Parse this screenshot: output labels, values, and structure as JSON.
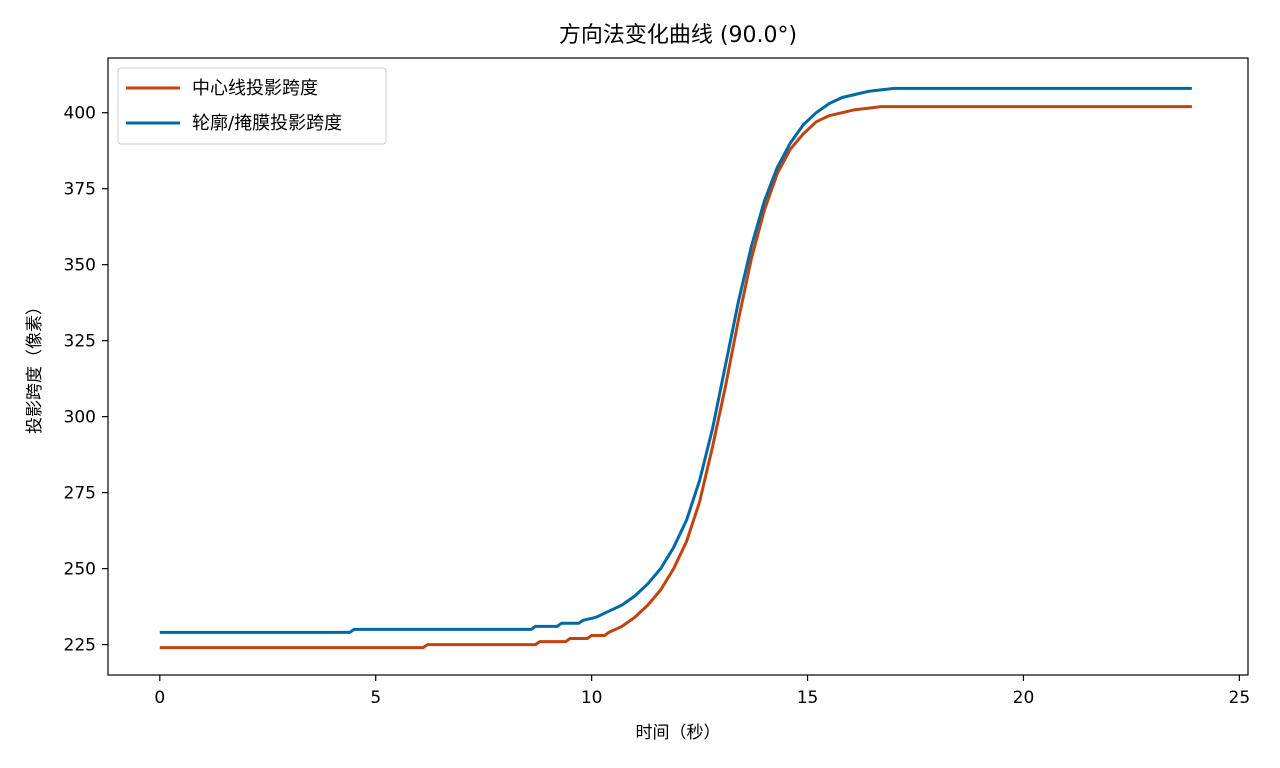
{
  "chart_data": {
    "type": "line",
    "title": "方向法变化曲线 (90.0°)",
    "xlabel": "时间（秒）",
    "ylabel": "投影跨度（像素）",
    "xlim": [
      -1.2,
      25.2
    ],
    "ylim": [
      215,
      418
    ],
    "xticks": [
      0,
      5,
      10,
      15,
      20,
      25
    ],
    "yticks": [
      225,
      250,
      275,
      300,
      325,
      350,
      375,
      400
    ],
    "grid": false,
    "legend_position": "top-left",
    "series": [
      {
        "name": "中心线投影跨度",
        "color": "#c1440e",
        "x": [
          0,
          6.1,
          6.2,
          8.7,
          8.8,
          9.4,
          9.5,
          9.9,
          10.0,
          10.3,
          10.4,
          10.7,
          11.0,
          11.3,
          11.6,
          11.9,
          12.2,
          12.5,
          12.8,
          13.1,
          13.4,
          13.7,
          14.0,
          14.3,
          14.6,
          14.9,
          15.2,
          15.5,
          15.8,
          16.1,
          16.4,
          16.7,
          17.0,
          17.3,
          17.6,
          18.0,
          19.0,
          20.0,
          21.0,
          22.0,
          23.9
        ],
        "y": [
          224,
          224,
          225,
          225,
          226,
          226,
          227,
          227,
          228,
          228,
          229,
          231,
          234,
          238,
          243,
          250,
          259,
          272,
          290,
          310,
          332,
          352,
          368,
          380,
          388,
          393,
          397,
          399,
          400,
          401,
          401.5,
          402,
          402,
          402,
          402,
          402,
          402,
          402,
          402,
          402,
          402
        ]
      },
      {
        "name": "轮廓/掩膜投影跨度",
        "color": "#0068a5",
        "x": [
          0,
          4.4,
          4.5,
          8.6,
          8.7,
          9.2,
          9.3,
          9.7,
          9.8,
          10.1,
          10.4,
          10.7,
          11.0,
          11.3,
          11.6,
          11.9,
          12.2,
          12.5,
          12.8,
          13.1,
          13.4,
          13.7,
          14.0,
          14.3,
          14.6,
          14.9,
          15.2,
          15.5,
          15.8,
          16.1,
          16.4,
          16.7,
          17.0,
          17.3,
          18.0,
          19.0,
          20.0,
          21.0,
          22.0,
          23.9
        ],
        "y": [
          229,
          229,
          230,
          230,
          231,
          231,
          232,
          232,
          233,
          234,
          236,
          238,
          241,
          245,
          250,
          257,
          266,
          279,
          296,
          317,
          338,
          356,
          371,
          382,
          390,
          396,
          400,
          403,
          405,
          406,
          407,
          407.5,
          408,
          408,
          408,
          408,
          408,
          408,
          408,
          408
        ]
      }
    ]
  }
}
